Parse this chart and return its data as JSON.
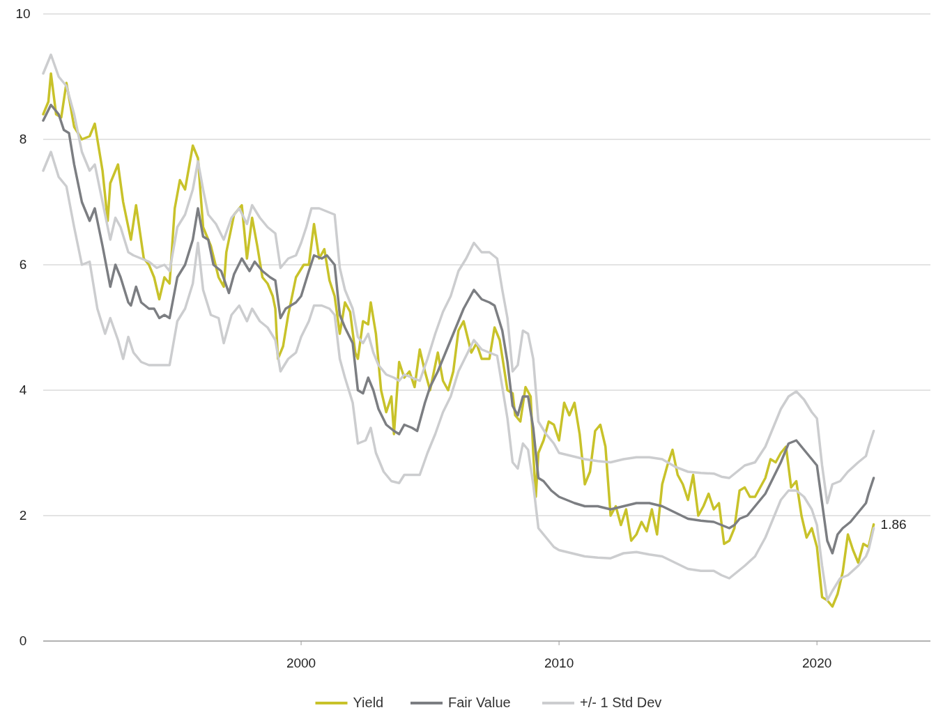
{
  "chart_data": {
    "type": "line",
    "xlim": [
      1990,
      2024.4
    ],
    "ylim": [
      0,
      10
    ],
    "xticks": [
      2000,
      2010,
      2020
    ],
    "yticks": [
      0,
      2,
      4,
      6,
      8,
      10
    ],
    "grid": "y",
    "legend": "bottom",
    "annotations": [
      {
        "text": "1.86",
        "x": 2022.2,
        "y": 1.86
      }
    ],
    "series": [
      {
        "name": "Yield",
        "color": "#c8c22a",
        "x": [
          1990.0,
          1990.2,
          1990.3,
          1990.5,
          1990.7,
          1990.9,
          1991.2,
          1991.5,
          1991.8,
          1992.0,
          1992.3,
          1992.5,
          1992.6,
          1992.9,
          1993.1,
          1993.4,
          1993.6,
          1993.9,
          1994.1,
          1994.3,
          1994.5,
          1994.7,
          1994.9,
          1995.1,
          1995.3,
          1995.5,
          1995.8,
          1996.0,
          1996.2,
          1996.5,
          1996.8,
          1997.0,
          1997.1,
          1997.4,
          1997.7,
          1997.9,
          1998.1,
          1998.3,
          1998.5,
          1998.7,
          1998.9,
          1999.0,
          1999.1,
          1999.3,
          1999.5,
          1999.8,
          2000.1,
          2000.3,
          2000.5,
          2000.7,
          2000.9,
          2001.1,
          2001.3,
          2001.5,
          2001.7,
          2001.9,
          2002.1,
          2002.2,
          2002.4,
          2002.6,
          2002.7,
          2002.9,
          2003.1,
          2003.3,
          2003.5,
          2003.6,
          2003.8,
          2004.0,
          2004.2,
          2004.4,
          2004.6,
          2004.8,
          2005.0,
          2005.3,
          2005.5,
          2005.7,
          2005.9,
          2006.1,
          2006.3,
          2006.6,
          2006.8,
          2007.0,
          2007.3,
          2007.5,
          2007.7,
          2008.0,
          2008.2,
          2008.3,
          2008.5,
          2008.7,
          2008.9,
          2009.0,
          2009.1,
          2009.2,
          2009.4,
          2009.6,
          2009.8,
          2010.0,
          2010.2,
          2010.4,
          2010.6,
          2010.8,
          2011.0,
          2011.2,
          2011.4,
          2011.6,
          2011.8,
          2012.0,
          2012.2,
          2012.4,
          2012.6,
          2012.8,
          2013.0,
          2013.2,
          2013.4,
          2013.6,
          2013.8,
          2014.0,
          2014.2,
          2014.4,
          2014.6,
          2014.8,
          2015.0,
          2015.2,
          2015.4,
          2015.6,
          2015.8,
          2016.0,
          2016.2,
          2016.4,
          2016.6,
          2016.8,
          2017.0,
          2017.2,
          2017.4,
          2017.6,
          2017.8,
          2018.0,
          2018.2,
          2018.4,
          2018.6,
          2018.8,
          2019.0,
          2019.2,
          2019.4,
          2019.6,
          2019.8,
          2020.0,
          2020.2,
          2020.4,
          2020.6,
          2020.8,
          2021.0,
          2021.2,
          2021.4,
          2021.6,
          2021.8,
          2022.0,
          2022.2
        ],
        "values": [
          8.4,
          8.6,
          9.05,
          8.4,
          8.35,
          8.9,
          8.2,
          8.0,
          8.05,
          8.25,
          7.5,
          6.7,
          7.3,
          7.6,
          7.0,
          6.4,
          6.95,
          6.1,
          6.0,
          5.8,
          5.45,
          5.8,
          5.7,
          6.9,
          7.35,
          7.2,
          7.9,
          7.7,
          6.6,
          6.3,
          5.8,
          5.65,
          6.2,
          6.8,
          6.95,
          6.1,
          6.75,
          6.3,
          5.8,
          5.7,
          5.5,
          5.3,
          4.5,
          4.7,
          5.2,
          5.8,
          6.0,
          6.0,
          6.65,
          6.1,
          6.25,
          5.75,
          5.5,
          4.9,
          5.4,
          5.25,
          4.6,
          4.5,
          5.1,
          5.05,
          5.4,
          4.9,
          4.0,
          3.65,
          3.9,
          3.3,
          4.45,
          4.2,
          4.3,
          4.05,
          4.65,
          4.3,
          4.0,
          4.6,
          4.15,
          4.0,
          4.3,
          4.95,
          5.1,
          4.6,
          4.75,
          4.5,
          4.5,
          5.0,
          4.8,
          4.0,
          3.95,
          3.6,
          3.5,
          4.05,
          3.9,
          3.0,
          2.3,
          3.0,
          3.2,
          3.5,
          3.45,
          3.2,
          3.8,
          3.6,
          3.8,
          3.3,
          2.5,
          2.7,
          3.35,
          3.45,
          3.1,
          2.0,
          2.15,
          1.85,
          2.1,
          1.6,
          1.7,
          1.9,
          1.75,
          2.1,
          1.7,
          2.5,
          2.8,
          3.05,
          2.65,
          2.5,
          2.25,
          2.65,
          2.0,
          2.15,
          2.35,
          2.1,
          2.2,
          1.55,
          1.6,
          1.8,
          2.4,
          2.45,
          2.3,
          2.3,
          2.45,
          2.6,
          2.9,
          2.85,
          3.0,
          3.1,
          2.45,
          2.55,
          2.0,
          1.65,
          1.8,
          1.5,
          0.7,
          0.65,
          0.55,
          0.75,
          1.1,
          1.7,
          1.45,
          1.25,
          1.55,
          1.5,
          1.86
        ]
      },
      {
        "name": "Fair Value",
        "color": "#7c7e82",
        "x": [
          1990.0,
          1990.3,
          1990.6,
          1990.8,
          1991.0,
          1991.2,
          1991.5,
          1991.8,
          1992.0,
          1992.3,
          1992.6,
          1992.8,
          1993.0,
          1993.3,
          1993.4,
          1993.6,
          1993.8,
          1994.1,
          1994.3,
          1994.5,
          1994.7,
          1994.9,
          1995.2,
          1995.5,
          1995.8,
          1996.0,
          1996.2,
          1996.4,
          1996.6,
          1996.9,
          1997.2,
          1997.4,
          1997.7,
          1998.0,
          1998.2,
          1998.5,
          1998.8,
          1999.0,
          1999.2,
          1999.4,
          1999.6,
          1999.8,
          2000.0,
          2000.3,
          2000.5,
          2000.8,
          2001.0,
          2001.3,
          2001.5,
          2001.7,
          2002.0,
          2002.2,
          2002.4,
          2002.6,
          2002.8,
          2003.0,
          2003.3,
          2003.6,
          2003.8,
          2004.0,
          2004.3,
          2004.5,
          2004.8,
          2005.0,
          2005.3,
          2005.6,
          2006.0,
          2006.3,
          2006.5,
          2006.7,
          2007.0,
          2007.3,
          2007.5,
          2007.8,
          2008.0,
          2008.2,
          2008.4,
          2008.6,
          2008.8,
          2009.0,
          2009.2,
          2009.4,
          2009.7,
          2010.0,
          2010.3,
          2010.6,
          2011.0,
          2011.5,
          2012.0,
          2012.5,
          2013.0,
          2013.5,
          2014.0,
          2014.5,
          2015.0,
          2015.5,
          2016.0,
          2016.3,
          2016.6,
          2016.8,
          2017.0,
          2017.3,
          2017.6,
          2018.0,
          2018.3,
          2018.6,
          2018.9,
          2019.2,
          2019.5,
          2019.8,
          2020.0,
          2020.2,
          2020.4,
          2020.6,
          2020.8,
          2021.0,
          2021.3,
          2021.6,
          2021.9,
          2022.0,
          2022.2
        ],
        "values": [
          8.3,
          8.55,
          8.4,
          8.15,
          8.1,
          7.6,
          7.0,
          6.7,
          6.9,
          6.3,
          5.65,
          6.0,
          5.8,
          5.4,
          5.35,
          5.65,
          5.4,
          5.3,
          5.3,
          5.15,
          5.2,
          5.15,
          5.8,
          6.0,
          6.4,
          6.9,
          6.45,
          6.4,
          6.0,
          5.9,
          5.55,
          5.85,
          6.1,
          5.9,
          6.05,
          5.9,
          5.8,
          5.75,
          5.15,
          5.3,
          5.35,
          5.4,
          5.5,
          5.9,
          6.15,
          6.1,
          6.15,
          6.0,
          5.2,
          5.0,
          4.75,
          4.0,
          3.95,
          4.2,
          4.0,
          3.7,
          3.45,
          3.35,
          3.3,
          3.45,
          3.4,
          3.35,
          3.8,
          4.05,
          4.3,
          4.6,
          5.0,
          5.3,
          5.45,
          5.6,
          5.45,
          5.4,
          5.35,
          4.95,
          4.45,
          3.75,
          3.6,
          3.9,
          3.9,
          3.4,
          2.6,
          2.55,
          2.4,
          2.3,
          2.25,
          2.2,
          2.15,
          2.15,
          2.1,
          2.15,
          2.2,
          2.2,
          2.15,
          2.05,
          1.95,
          1.92,
          1.9,
          1.85,
          1.8,
          1.85,
          1.95,
          2.0,
          2.15,
          2.35,
          2.6,
          2.85,
          3.15,
          3.2,
          3.05,
          2.9,
          2.8,
          2.2,
          1.6,
          1.4,
          1.7,
          1.8,
          1.9,
          2.05,
          2.2,
          2.35,
          2.6
        ]
      },
      {
        "name": "+/- 1 Std Dev",
        "color": "#cccdcf",
        "x": [
          1990.0,
          1990.3,
          1990.6,
          1990.9,
          1991.2,
          1991.5,
          1991.8,
          1992.0,
          1992.3,
          1992.6,
          1992.8,
          1993.0,
          1993.3,
          1993.5,
          1993.8,
          1994.1,
          1994.4,
          1994.7,
          1994.9,
          1995.2,
          1995.5,
          1995.8,
          1996.0,
          1996.2,
          1996.4,
          1996.7,
          1997.0,
          1997.3,
          1997.6,
          1997.9,
          1998.1,
          1998.4,
          1998.7,
          1999.0,
          1999.2,
          1999.5,
          1999.8,
          2000.0,
          2000.2,
          2000.4,
          2000.7,
          2001.0,
          2001.3,
          2001.5,
          2001.7,
          2002.0,
          2002.2,
          2002.4,
          2002.6,
          2002.8,
          2003.0,
          2003.3,
          2003.6,
          2003.8,
          2004.0,
          2004.3,
          2004.6,
          2004.9,
          2005.2,
          2005.5,
          2005.8,
          2006.1,
          2006.4,
          2006.7,
          2007.0,
          2007.3,
          2007.6,
          2007.8,
          2008.0,
          2008.2,
          2008.4,
          2008.6,
          2008.8,
          2009.0,
          2009.2,
          2009.5,
          2009.8,
          2010.0,
          2010.5,
          2011.0,
          2011.5,
          2012.0,
          2012.5,
          2013.0,
          2013.5,
          2014.0,
          2014.5,
          2015.0,
          2015.5,
          2016.0,
          2016.3,
          2016.6,
          2016.9,
          2017.2,
          2017.6,
          2018.0,
          2018.3,
          2018.6,
          2018.9,
          2019.2,
          2019.5,
          2019.8,
          2020.0,
          2020.2,
          2020.4,
          2020.6,
          2020.9,
          2021.2,
          2021.6,
          2021.9,
          2022.0,
          2022.2
        ],
        "values": [
          9.05,
          9.35,
          9.0,
          8.85,
          8.4,
          7.8,
          7.5,
          7.6,
          7.0,
          6.4,
          6.75,
          6.6,
          6.2,
          6.15,
          6.1,
          6.05,
          5.95,
          6.0,
          5.9,
          6.6,
          6.8,
          7.2,
          7.65,
          7.2,
          6.8,
          6.65,
          6.4,
          6.75,
          6.9,
          6.65,
          6.95,
          6.75,
          6.6,
          6.5,
          5.95,
          6.1,
          6.15,
          6.35,
          6.6,
          6.9,
          6.9,
          6.85,
          6.8,
          5.95,
          5.6,
          5.3,
          4.85,
          4.75,
          4.9,
          4.6,
          4.4,
          4.25,
          4.2,
          4.15,
          4.25,
          4.2,
          4.15,
          4.5,
          4.9,
          5.25,
          5.5,
          5.9,
          6.1,
          6.35,
          6.2,
          6.2,
          6.1,
          5.6,
          5.15,
          4.3,
          4.4,
          4.95,
          4.9,
          4.5,
          3.5,
          3.3,
          3.15,
          3.0,
          2.95,
          2.9,
          2.87,
          2.85,
          2.9,
          2.93,
          2.93,
          2.9,
          2.78,
          2.7,
          2.68,
          2.67,
          2.62,
          2.6,
          2.7,
          2.8,
          2.85,
          3.1,
          3.4,
          3.7,
          3.9,
          3.98,
          3.85,
          3.65,
          3.55,
          2.8,
          2.2,
          2.5,
          2.55,
          2.7,
          2.85,
          2.95,
          3.1,
          3.35
        ]
      },
      {
        "color": "#cccdcf",
        "x": [
          1990.0,
          1990.3,
          1990.6,
          1990.9,
          1991.2,
          1991.5,
          1991.8,
          1992.1,
          1992.4,
          1992.6,
          1992.9,
          1993.1,
          1993.3,
          1993.5,
          1993.8,
          1994.1,
          1994.4,
          1994.7,
          1994.9,
          1995.2,
          1995.5,
          1995.8,
          1996.0,
          1996.2,
          1996.5,
          1996.8,
          1997.0,
          1997.3,
          1997.6,
          1997.9,
          1998.1,
          1998.4,
          1998.7,
          1999.0,
          1999.2,
          1999.5,
          1999.8,
          2000.0,
          2000.3,
          2000.5,
          2000.8,
          2001.1,
          2001.3,
          2001.5,
          2001.7,
          2002.0,
          2002.2,
          2002.5,
          2002.7,
          2002.9,
          2003.2,
          2003.5,
          2003.8,
          2004.0,
          2004.3,
          2004.6,
          2004.9,
          2005.2,
          2005.5,
          2005.8,
          2006.1,
          2006.4,
          2006.7,
          2007.0,
          2007.3,
          2007.6,
          2007.8,
          2008.0,
          2008.2,
          2008.4,
          2008.6,
          2008.8,
          2009.0,
          2009.2,
          2009.5,
          2009.8,
          2010.0,
          2010.5,
          2011.0,
          2011.5,
          2012.0,
          2012.5,
          2013.0,
          2013.5,
          2014.0,
          2014.5,
          2015.0,
          2015.5,
          2016.0,
          2016.3,
          2016.6,
          2016.9,
          2017.2,
          2017.6,
          2018.0,
          2018.3,
          2018.6,
          2018.9,
          2019.2,
          2019.5,
          2019.8,
          2020.0,
          2020.2,
          2020.4,
          2020.6,
          2020.9,
          2021.2,
          2021.6,
          2021.9,
          2022.0,
          2022.2
        ],
        "values": [
          7.5,
          7.8,
          7.4,
          7.25,
          6.6,
          6.0,
          6.05,
          5.3,
          4.9,
          5.15,
          4.8,
          4.5,
          4.85,
          4.6,
          4.45,
          4.4,
          4.4,
          4.4,
          4.4,
          5.1,
          5.3,
          5.7,
          6.35,
          5.6,
          5.2,
          5.15,
          4.75,
          5.2,
          5.35,
          5.1,
          5.3,
          5.1,
          5.0,
          4.8,
          4.3,
          4.5,
          4.6,
          4.85,
          5.1,
          5.35,
          5.35,
          5.3,
          5.2,
          4.5,
          4.2,
          3.8,
          3.15,
          3.2,
          3.4,
          3.0,
          2.7,
          2.55,
          2.52,
          2.65,
          2.65,
          2.65,
          3.0,
          3.3,
          3.65,
          3.9,
          4.3,
          4.55,
          4.8,
          4.65,
          4.6,
          4.55,
          4.05,
          3.55,
          2.85,
          2.75,
          3.15,
          3.05,
          2.5,
          1.8,
          1.65,
          1.5,
          1.45,
          1.4,
          1.35,
          1.33,
          1.32,
          1.4,
          1.42,
          1.38,
          1.35,
          1.25,
          1.15,
          1.12,
          1.12,
          1.05,
          1.0,
          1.1,
          1.2,
          1.35,
          1.65,
          1.95,
          2.25,
          2.4,
          2.4,
          2.3,
          2.1,
          1.85,
          1.2,
          0.65,
          0.8,
          1.0,
          1.05,
          1.2,
          1.35,
          1.45,
          1.8
        ]
      }
    ]
  }
}
